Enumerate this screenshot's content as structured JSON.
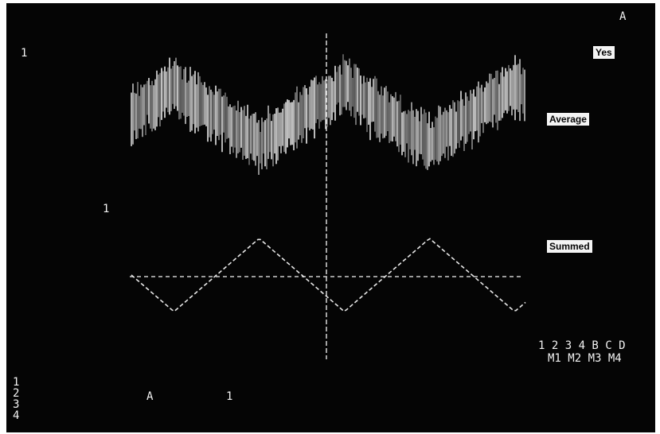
{
  "corner_label": "A",
  "top_left_marker": "1",
  "yes_label": "Yes",
  "average_label": "Average",
  "summed_label": "Summed",
  "mid_left_marker": "1",
  "channels_row1": "1 2 3 4 B C D",
  "channels_row2": "M1 M2 M3 M4",
  "bottom_left_list": [
    "1",
    "2",
    "3",
    "4"
  ],
  "bottom_marker_a": "A",
  "bottom_marker_1": "1",
  "colors": {
    "screen": "#050505",
    "trace": "#f0f0f0",
    "label_box": "#f4f4f4"
  }
}
